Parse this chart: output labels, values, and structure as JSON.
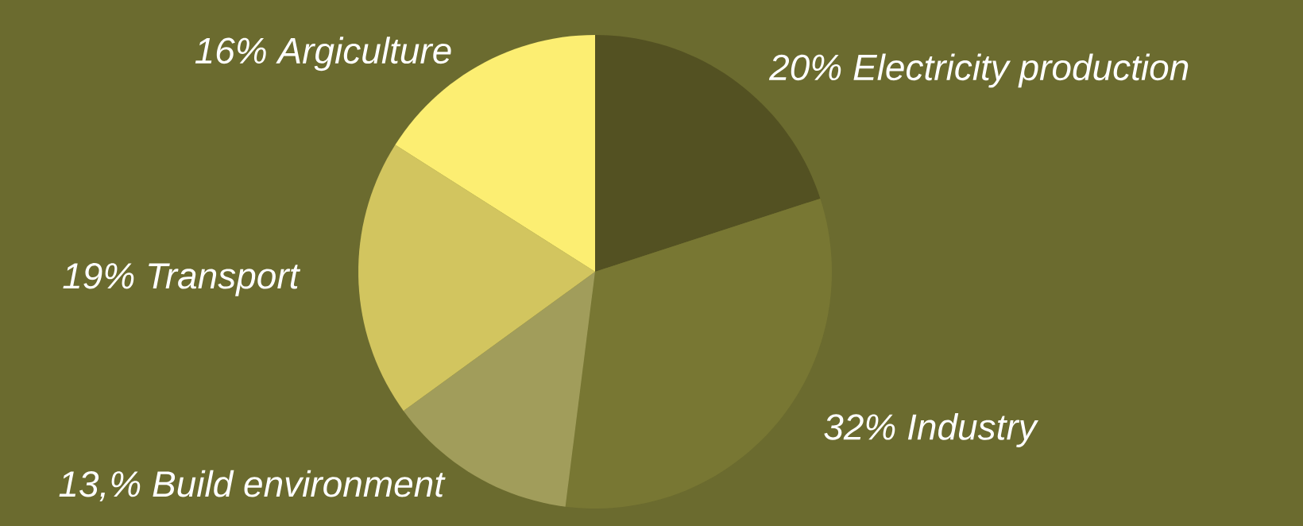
{
  "chart_data": {
    "type": "pie",
    "categories": [
      "Electricity production",
      "Industry",
      "Build environment",
      "Transport",
      "Argiculture"
    ],
    "values": [
      20,
      32,
      13,
      19,
      16
    ],
    "value_labels": [
      "20%",
      "32%",
      "13,%",
      "19%",
      "16%"
    ],
    "colors": [
      "#535122",
      "#787733",
      "#a19d5b",
      "#d2c55f",
      "#fcee72"
    ]
  }
}
